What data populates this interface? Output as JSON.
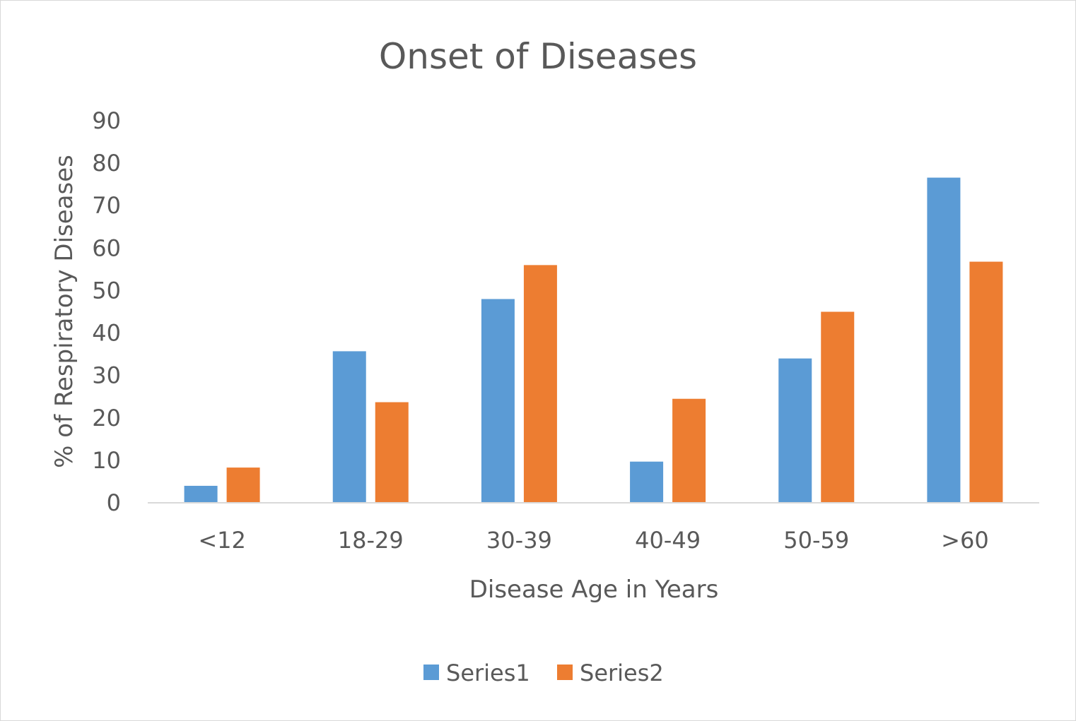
{
  "chart_data": {
    "type": "bar",
    "title": "Onset of Diseases",
    "xlabel": "Disease Age in Years",
    "ylabel": "% of Respiratory Diseases",
    "categories": [
      "<12",
      "18-29",
      "30-39",
      "40-49",
      "50-59",
      ">60"
    ],
    "series": [
      {
        "name": "Series1",
        "color": "#5b9bd5",
        "values": [
          4,
          35.7,
          48,
          9.7,
          34,
          76.6
        ]
      },
      {
        "name": "Series2",
        "color": "#ed7d31",
        "values": [
          8.3,
          23.7,
          56,
          24.5,
          45,
          56.8
        ]
      }
    ],
    "ylim": [
      0,
      90
    ],
    "yticks": [
      0,
      10,
      20,
      30,
      40,
      50,
      60,
      70,
      80,
      90
    ],
    "grid": false,
    "legend_position": "bottom"
  }
}
